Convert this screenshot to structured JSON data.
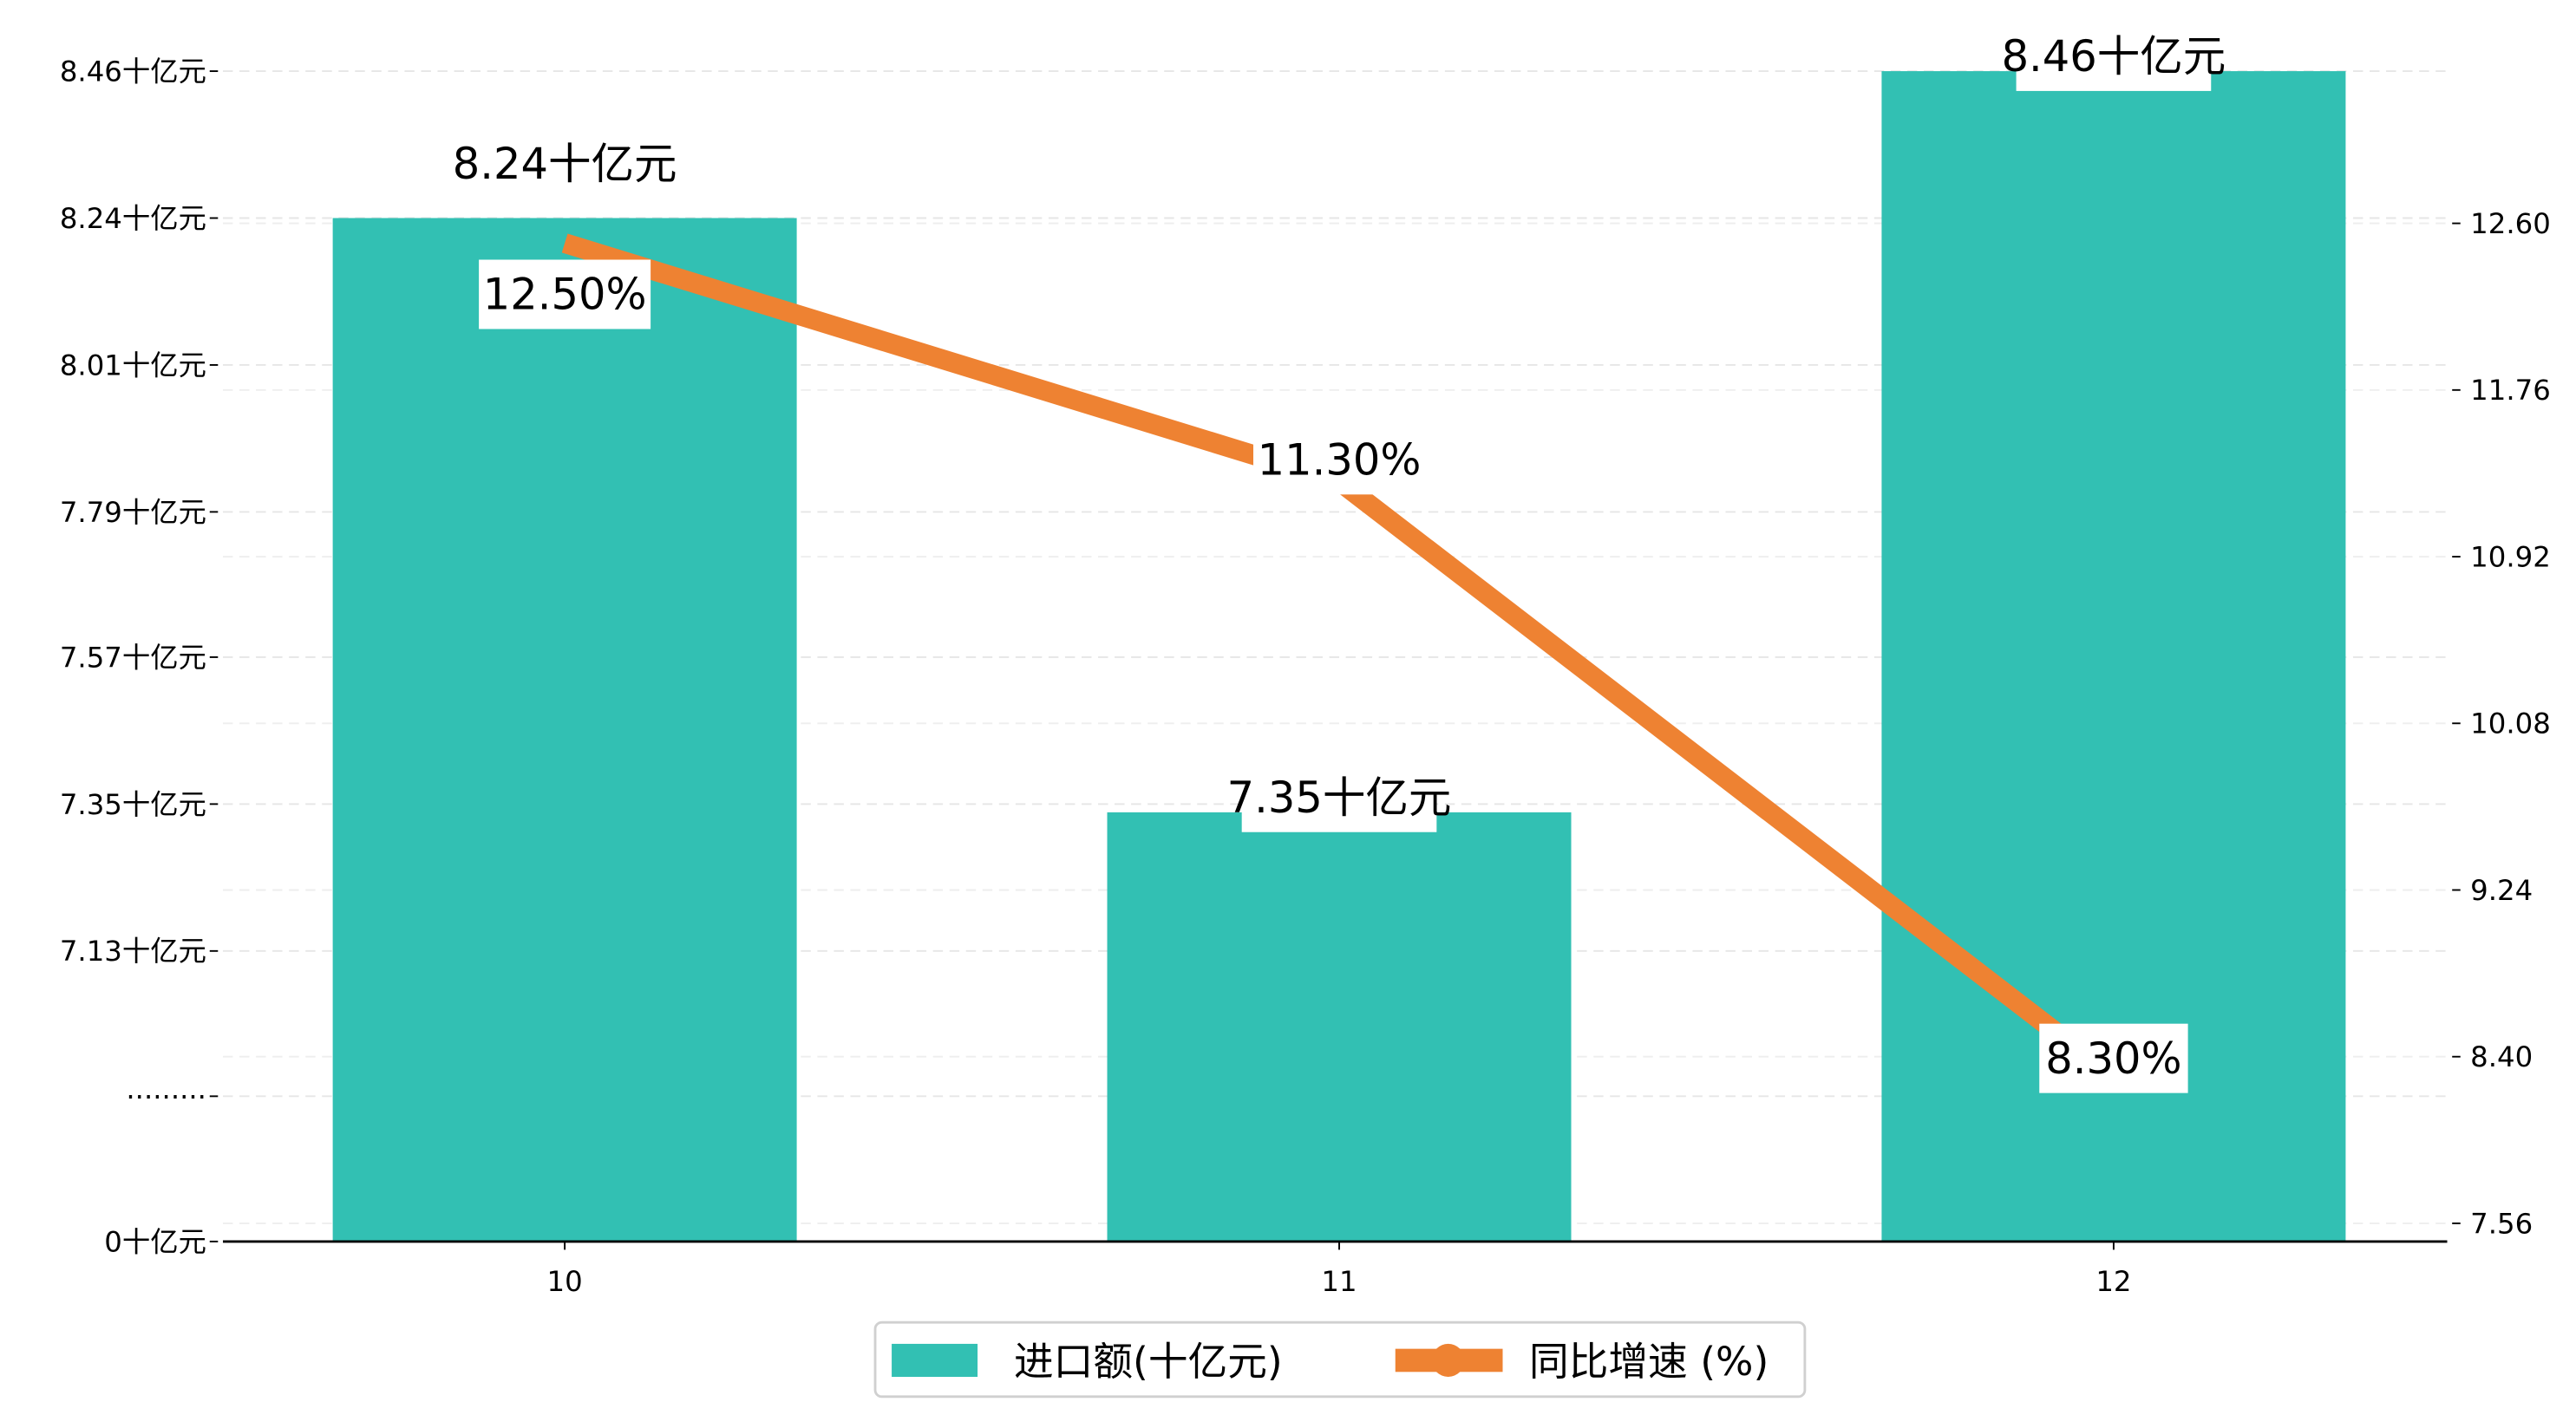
{
  "chart_data": {
    "type": "bar+line",
    "title": "",
    "categories": [
      "10",
      "11",
      "12"
    ],
    "series": [
      {
        "name": "进口额(十亿元)",
        "type": "bar",
        "axis": "left",
        "color": "#1fb8a6",
        "values": [
          8.24,
          7.35,
          8.46
        ],
        "labels": [
          "8.24十亿元",
          "7.35十亿元",
          "8.46十亿元"
        ]
      },
      {
        "name": "同比增速 (%)",
        "type": "line",
        "axis": "right",
        "color": "#f08030",
        "values": [
          12.5,
          11.3,
          8.3
        ],
        "labels": [
          "12.50%",
          "11.30%",
          "8.30%"
        ]
      }
    ],
    "left_axis": {
      "ticks": [
        0,
        7.13,
        7.35,
        7.57,
        7.79,
        8.01,
        8.24,
        8.46
      ],
      "tick_labels": [
        "0十亿元",
        "·········",
        "7.13十亿元",
        "7.35十亿元",
        "7.57十亿元",
        "7.79十亿元",
        "8.01十亿元",
        "8.24十亿元",
        "8.46十亿元"
      ],
      "broken": true
    },
    "right_axis": {
      "ticks": [
        7.56,
        8.4,
        9.24,
        10.08,
        10.92,
        11.76,
        12.6
      ],
      "tick_labels": [
        "7.56",
        "8.40",
        "9.24",
        "10.08",
        "10.92",
        "11.76",
        "12.60"
      ]
    },
    "grid": true,
    "legend": {
      "position": "bottom-center",
      "entries": [
        "进口额(十亿元)",
        "同比增速 (%)"
      ]
    }
  }
}
